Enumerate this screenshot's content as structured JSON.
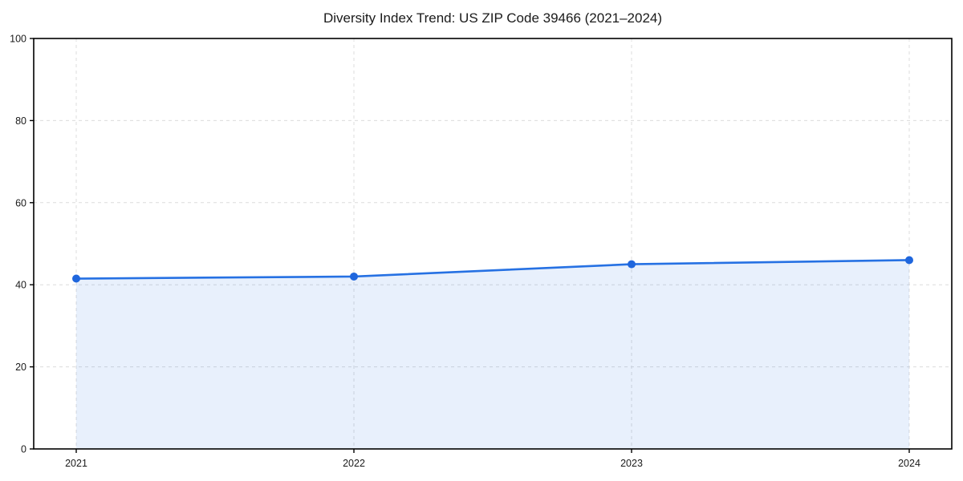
{
  "chart_data": {
    "type": "area",
    "title": "Diversity Index Trend: US ZIP Code 39466 (2021–2024)",
    "x": [
      "2021",
      "2022",
      "2023",
      "2024"
    ],
    "series": [
      {
        "name": "Diversity Index",
        "values": [
          41.5,
          42,
          45,
          46
        ]
      }
    ],
    "xlabel": "",
    "ylabel": "",
    "ylim": [
      0,
      100
    ],
    "yticks": [
      0,
      20,
      40,
      60,
      80,
      100
    ],
    "grid": true,
    "grid_style": "dashed",
    "legend_position": "none",
    "colors": {
      "line": "#2671e3",
      "marker": "#1f66dd",
      "fill": "#2671e3",
      "fill_opacity": 0.105,
      "grid": "#dcdcdc",
      "spine": "#000000",
      "text": "#1a1a1a",
      "background": "#ffffff"
    }
  }
}
